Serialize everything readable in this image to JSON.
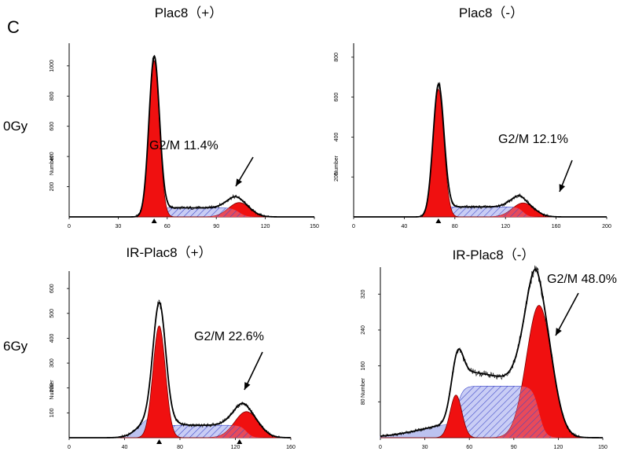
{
  "figure": {
    "panel_letter": "C",
    "row_labels": [
      "0Gy",
      "6Gy"
    ]
  },
  "chart_data": [
    {
      "type": "area",
      "title": "Plac8（+）",
      "ylabel": "Number",
      "xlim": [
        0,
        150
      ],
      "ylim": [
        0,
        1150
      ],
      "xticks": [
        0,
        30,
        60,
        90,
        120,
        150
      ],
      "yticks": [
        200,
        400,
        600,
        800,
        1000
      ],
      "annotation": "G2/M 11.4%",
      "g1_peak": {
        "center": 52,
        "sigma": 3.2,
        "height": 1035
      },
      "s_phase": {
        "start": 52,
        "end": 104,
        "level": 60
      },
      "g2_peak": {
        "center": 104,
        "sigma": 6.5,
        "height": 95
      },
      "marker_positions": [
        52
      ]
    },
    {
      "type": "area",
      "title": "Plac8（-）",
      "ylabel": "Number",
      "xlim": [
        0,
        200
      ],
      "ylim": [
        0,
        870
      ],
      "xticks": [
        0,
        40,
        80,
        120,
        160,
        200
      ],
      "yticks": [
        200,
        400,
        600,
        800
      ],
      "annotation": "G2/M 12.1%",
      "g1_peak": {
        "center": 67,
        "sigma": 4.3,
        "height": 640
      },
      "s_phase": {
        "start": 67,
        "end": 134,
        "level": 50
      },
      "g2_peak": {
        "center": 134,
        "sigma": 8.5,
        "height": 70
      },
      "marker_positions": [
        67
      ]
    },
    {
      "type": "area",
      "title": "IR-Plac8（+）",
      "ylabel": "Number",
      "xlim": [
        0,
        160
      ],
      "ylim": [
        0,
        670
      ],
      "xticks": [
        0,
        40,
        80,
        120,
        160
      ],
      "yticks": [
        100,
        200,
        300,
        400,
        500,
        600
      ],
      "annotation": "G2/M 22.6%",
      "g1_peak": {
        "center": 65,
        "sigma": 4.5,
        "height": 450
      },
      "s_phase": {
        "start": 65,
        "end": 128,
        "level": 50
      },
      "g2_peak": {
        "center": 128,
        "sigma": 8.5,
        "height": 105
      },
      "debris": {
        "center": 60,
        "sigma": 9,
        "height": 80
      },
      "marker_positions": [
        65,
        123
      ]
    },
    {
      "type": "area",
      "title": "IR-Plac8（-）",
      "ylabel": "Number",
      "xlim": [
        0,
        150
      ],
      "ylim": [
        0,
        380
      ],
      "xticks": [
        0,
        30,
        60,
        90,
        120,
        150
      ],
      "yticks": [
        80,
        160,
        240,
        320
      ],
      "annotation": "G2/M 48.0%",
      "g1_peak": {
        "center": 51,
        "sigma": 4,
        "height": 95
      },
      "s_phase": {
        "start": 51,
        "end": 107,
        "level": 115
      },
      "g2_peak": {
        "center": 107,
        "sigma": 8.5,
        "height": 295
      },
      "debris": {
        "center": 55,
        "sigma": 26,
        "height": 32
      },
      "marker_positions": []
    }
  ]
}
